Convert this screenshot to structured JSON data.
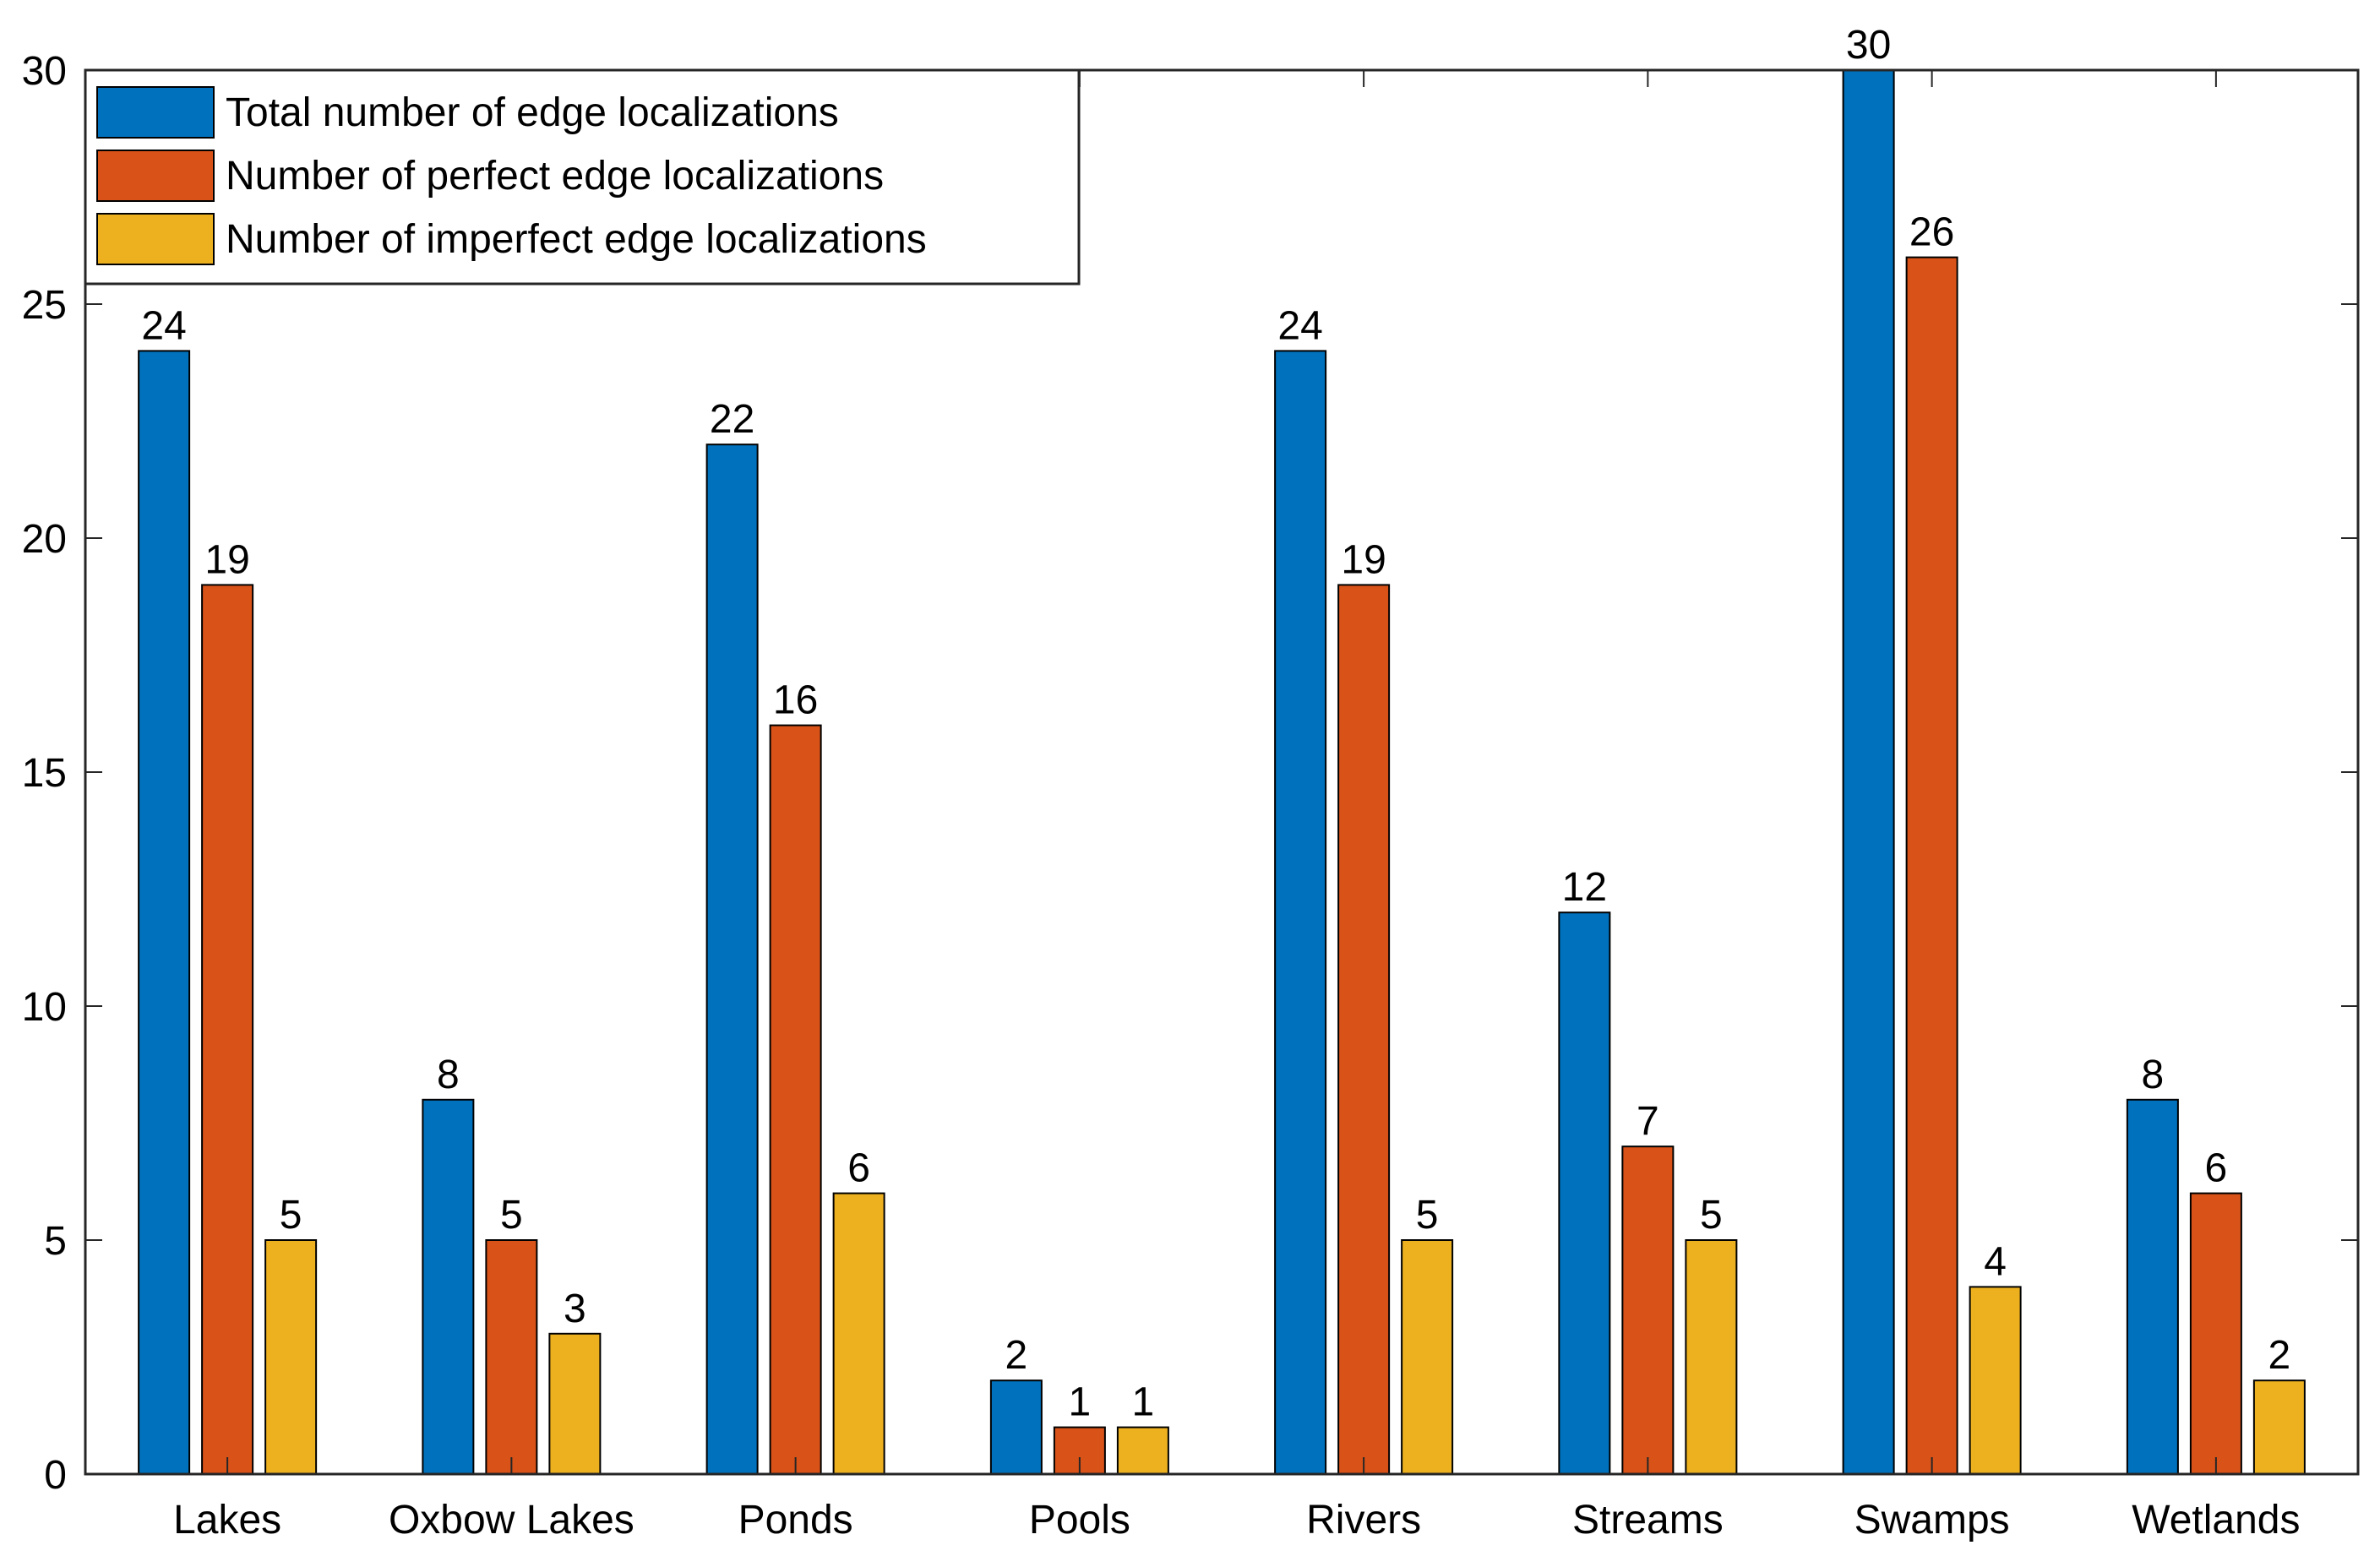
{
  "chart_data": {
    "type": "bar",
    "title": "",
    "xlabel": "",
    "ylabel": "",
    "categories": [
      "Lakes",
      "Oxbow Lakes",
      "Ponds",
      "Pools",
      "Rivers",
      "Streams",
      "Swamps",
      "Wetlands"
    ],
    "ylim": [
      0,
      30
    ],
    "yticks": [
      "0",
      "5",
      "10",
      "15",
      "20",
      "25",
      "30"
    ],
    "grid": false,
    "legend_position": "top-left",
    "series": [
      {
        "name": "Total number of edge localizations",
        "color": "#0072BD",
        "values": [
          24,
          8,
          22,
          2,
          24,
          12,
          30,
          8
        ]
      },
      {
        "name": "Number of perfect edge localizations",
        "color": "#D95319",
        "values": [
          19,
          5,
          16,
          1,
          19,
          7,
          26,
          6
        ]
      },
      {
        "name": "Number of imperfect edge localizations",
        "color": "#EDB120",
        "values": [
          5,
          3,
          6,
          1,
          5,
          5,
          4,
          2
        ]
      }
    ]
  }
}
